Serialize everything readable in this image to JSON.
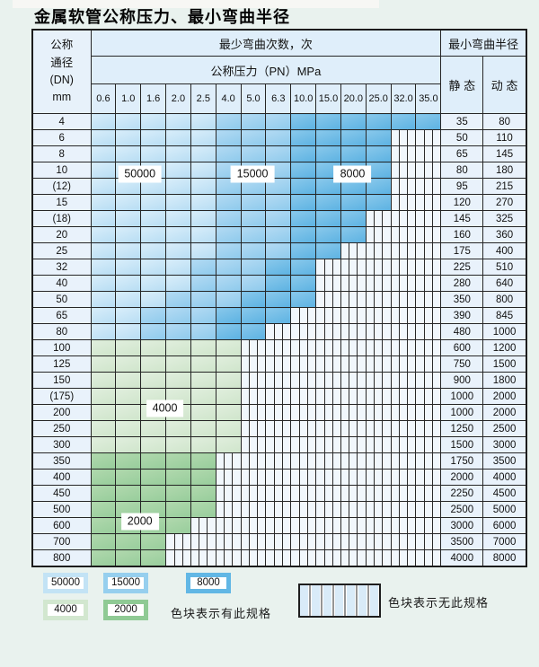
{
  "title": "金属软管公称压力、最小弯曲半径",
  "table": {
    "dn_header": [
      "公称",
      "通径",
      "(DN)",
      "mm"
    ],
    "bend_header": "最少弯曲次数，次",
    "radius_header": "最小弯曲半径",
    "pressure_header": "公称压力（PN）MPa",
    "pressures": [
      "0.6",
      "1.0",
      "1.6",
      "2.0",
      "2.5",
      "4.0",
      "5.0",
      "6.3",
      "10.0",
      "15.0",
      "20.0",
      "25.0",
      "32.0",
      "35.0"
    ],
    "static_label": "静 态",
    "dynamic_label": "动 态",
    "cell_legend_key": {
      "L": "50000",
      "M": "15000",
      "D": "8000",
      "G": "4000",
      "H": "2000",
      "X": "no-spec"
    },
    "rows": [
      {
        "dn": "4",
        "cells": "LLLLLMMMDDDDDD",
        "static": "35",
        "dynamic": "80"
      },
      {
        "dn": "6",
        "cells": "LLLLLMMMDDDDXX",
        "static": "50",
        "dynamic": "110"
      },
      {
        "dn": "8",
        "cells": "LLLLLMMMDDDDXX",
        "static": "65",
        "dynamic": "145"
      },
      {
        "dn": "10",
        "cells": "LLLLLMMMDDDDXX",
        "static": "80",
        "dynamic": "180"
      },
      {
        "dn": "(12)",
        "cells": "LLLLLMMMDDDDXX",
        "static": "95",
        "dynamic": "215"
      },
      {
        "dn": "15",
        "cells": "LLLLLMMMDDDDXX",
        "static": "120",
        "dynamic": "270"
      },
      {
        "dn": "(18)",
        "cells": "LLLLLMMMDDDXXX",
        "static": "145",
        "dynamic": "325"
      },
      {
        "dn": "20",
        "cells": "LLLLLMMMDDDXXX",
        "static": "160",
        "dynamic": "360"
      },
      {
        "dn": "25",
        "cells": "LLLLLMMMDDXXXX",
        "static": "175",
        "dynamic": "400"
      },
      {
        "dn": "32",
        "cells": "LLLLMMMDDXXXXX",
        "static": "225",
        "dynamic": "510"
      },
      {
        "dn": "40",
        "cells": "LLLLMMMDDXXXXX",
        "static": "280",
        "dynamic": "640"
      },
      {
        "dn": "50",
        "cells": "LLLMMMDDDXXXXX",
        "static": "350",
        "dynamic": "800"
      },
      {
        "dn": "65",
        "cells": "LLMMMDDDXXXXXX",
        "static": "390",
        "dynamic": "845"
      },
      {
        "dn": "80",
        "cells": "LLMMMDDXXXXXXX",
        "static": "480",
        "dynamic": "1000"
      },
      {
        "dn": "100",
        "cells": "GGGGGGXXXXXXXX",
        "static": "600",
        "dynamic": "1200"
      },
      {
        "dn": "125",
        "cells": "GGGGGGXXXXXXXX",
        "static": "750",
        "dynamic": "1500"
      },
      {
        "dn": "150",
        "cells": "GGGGGGXXXXXXXX",
        "static": "900",
        "dynamic": "1800"
      },
      {
        "dn": "(175)",
        "cells": "GGGGGGXXXXXXXX",
        "static": "1000",
        "dynamic": "2000"
      },
      {
        "dn": "200",
        "cells": "GGGGGGXXXXXXXX",
        "static": "1000",
        "dynamic": "2000"
      },
      {
        "dn": "250",
        "cells": "GGGGGGXXXXXXXX",
        "static": "1250",
        "dynamic": "2500"
      },
      {
        "dn": "300",
        "cells": "GGGGGGXXXXXXXX",
        "static": "1500",
        "dynamic": "3000"
      },
      {
        "dn": "350",
        "cells": "HHHHHXXXXXXXXX",
        "static": "1750",
        "dynamic": "3500"
      },
      {
        "dn": "400",
        "cells": "HHHHHXXXXXXXXX",
        "static": "2000",
        "dynamic": "4000"
      },
      {
        "dn": "450",
        "cells": "HHHHHXXXXXXXXX",
        "static": "2250",
        "dynamic": "4500"
      },
      {
        "dn": "500",
        "cells": "HHHHHXXXXXXXXX",
        "static": "2500",
        "dynamic": "5000"
      },
      {
        "dn": "600",
        "cells": "HHHHXXXXXXXXXX",
        "static": "3000",
        "dynamic": "6000"
      },
      {
        "dn": "700",
        "cells": "HHHXXXXXXXXXXX",
        "static": "3500",
        "dynamic": "7000"
      },
      {
        "dn": "800",
        "cells": "HHHXXXXXXXXXXX",
        "static": "4000",
        "dynamic": "8000"
      }
    ]
  },
  "region_labels": [
    {
      "text": "50000",
      "col_start": 1,
      "col_end": 2,
      "row_pos": 4.0
    },
    {
      "text": "15000",
      "col_start": 5,
      "col_end": 7,
      "row_pos": 4.0
    },
    {
      "text": "8000",
      "col_start": 9,
      "col_end": 11,
      "row_pos": 4.0
    },
    {
      "text": "4000",
      "col_start": 2,
      "col_end": 3,
      "row_pos": 18.5
    },
    {
      "text": "2000",
      "col_start": 1,
      "col_end": 2,
      "row_pos": 25.5
    }
  ],
  "legend": {
    "swatches": [
      {
        "label": "50000",
        "type": "c-50000",
        "border": "#c3e3f5"
      },
      {
        "label": "15000",
        "type": "c-15000",
        "border": "#96cfee"
      },
      {
        "label": "8000",
        "type": "c-8000",
        "border": "#62b7e5"
      },
      {
        "label": "4000",
        "type": "c-4000",
        "border": "#d2e7cf"
      },
      {
        "label": "2000",
        "type": "c-2000",
        "border": "#8fca94"
      }
    ],
    "has_spec_note": "色块表示有此规格",
    "no_spec_note": "色块表示无此规格"
  }
}
